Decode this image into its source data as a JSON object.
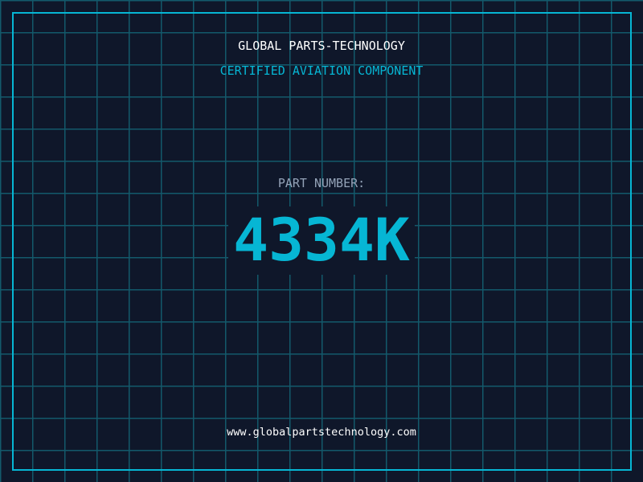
{
  "header": {
    "title": "GLOBAL PARTS-TECHNOLOGY",
    "subtitle": "CERTIFIED AVIATION COMPONENT"
  },
  "part": {
    "label": "PART NUMBER:",
    "number": "4334K"
  },
  "footer": {
    "url": "www.globalpartstechnology.com"
  },
  "colors": {
    "background": "#0f172a",
    "accent": "#06b6d4",
    "grid": "#13596b",
    "label": "#94a3b8"
  }
}
